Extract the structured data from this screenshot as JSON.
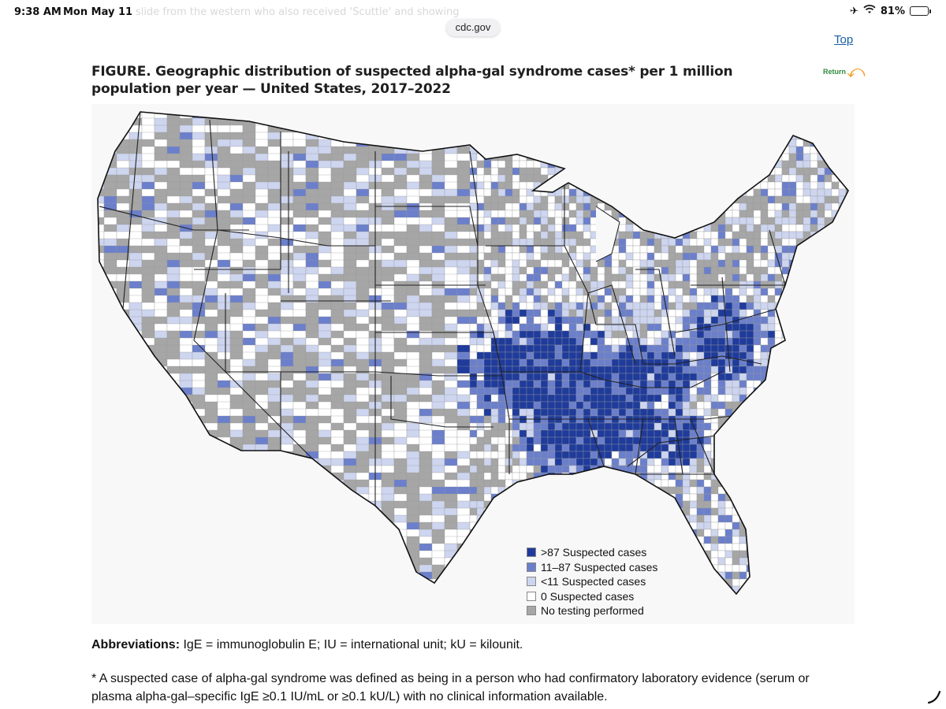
{
  "status_bar": {
    "time": "9:38 AM",
    "date": "Mon May 11",
    "ghost_text": "slide from the western who also received 'Scuttle' and showing",
    "battery_percent": "81%",
    "battery_level": 0.81
  },
  "browser": {
    "url": "cdc.gov",
    "top_link": "Top"
  },
  "figure": {
    "label": "FIGURE",
    "title": ". Geographic distribution of suspected alpha-gal syndrome cases* per 1 million population per year — United States, 2017–2022",
    "return_label": "Return"
  },
  "map": {
    "categories": [
      {
        "key": "high",
        "label": ">87 Suspected cases",
        "color": "#1f3b9b"
      },
      {
        "key": "mid",
        "label": "11–87 Suspected cases",
        "color": "#6b7fcb"
      },
      {
        "key": "low",
        "label": "<11 Suspected cases",
        "color": "#cdd5ef"
      },
      {
        "key": "zero",
        "label": "0 Suspected cases",
        "color": "#ffffff"
      },
      {
        "key": "none",
        "label": "No testing performed",
        "color": "#a6a6a6"
      }
    ]
  },
  "abbreviations": {
    "label": "Abbreviations:",
    "text": " IgE = immunoglobulin E; IU = international unit; kU = kilounit."
  },
  "footnote": "* A suspected case of alpha-gal syndrome was defined as being in a person who had confirmatory laboratory evidence (serum or plasma alpha-gal–specific IgE ≥0.1 IU/mL or ≥0.1 kU/L) with no clinical information available."
}
